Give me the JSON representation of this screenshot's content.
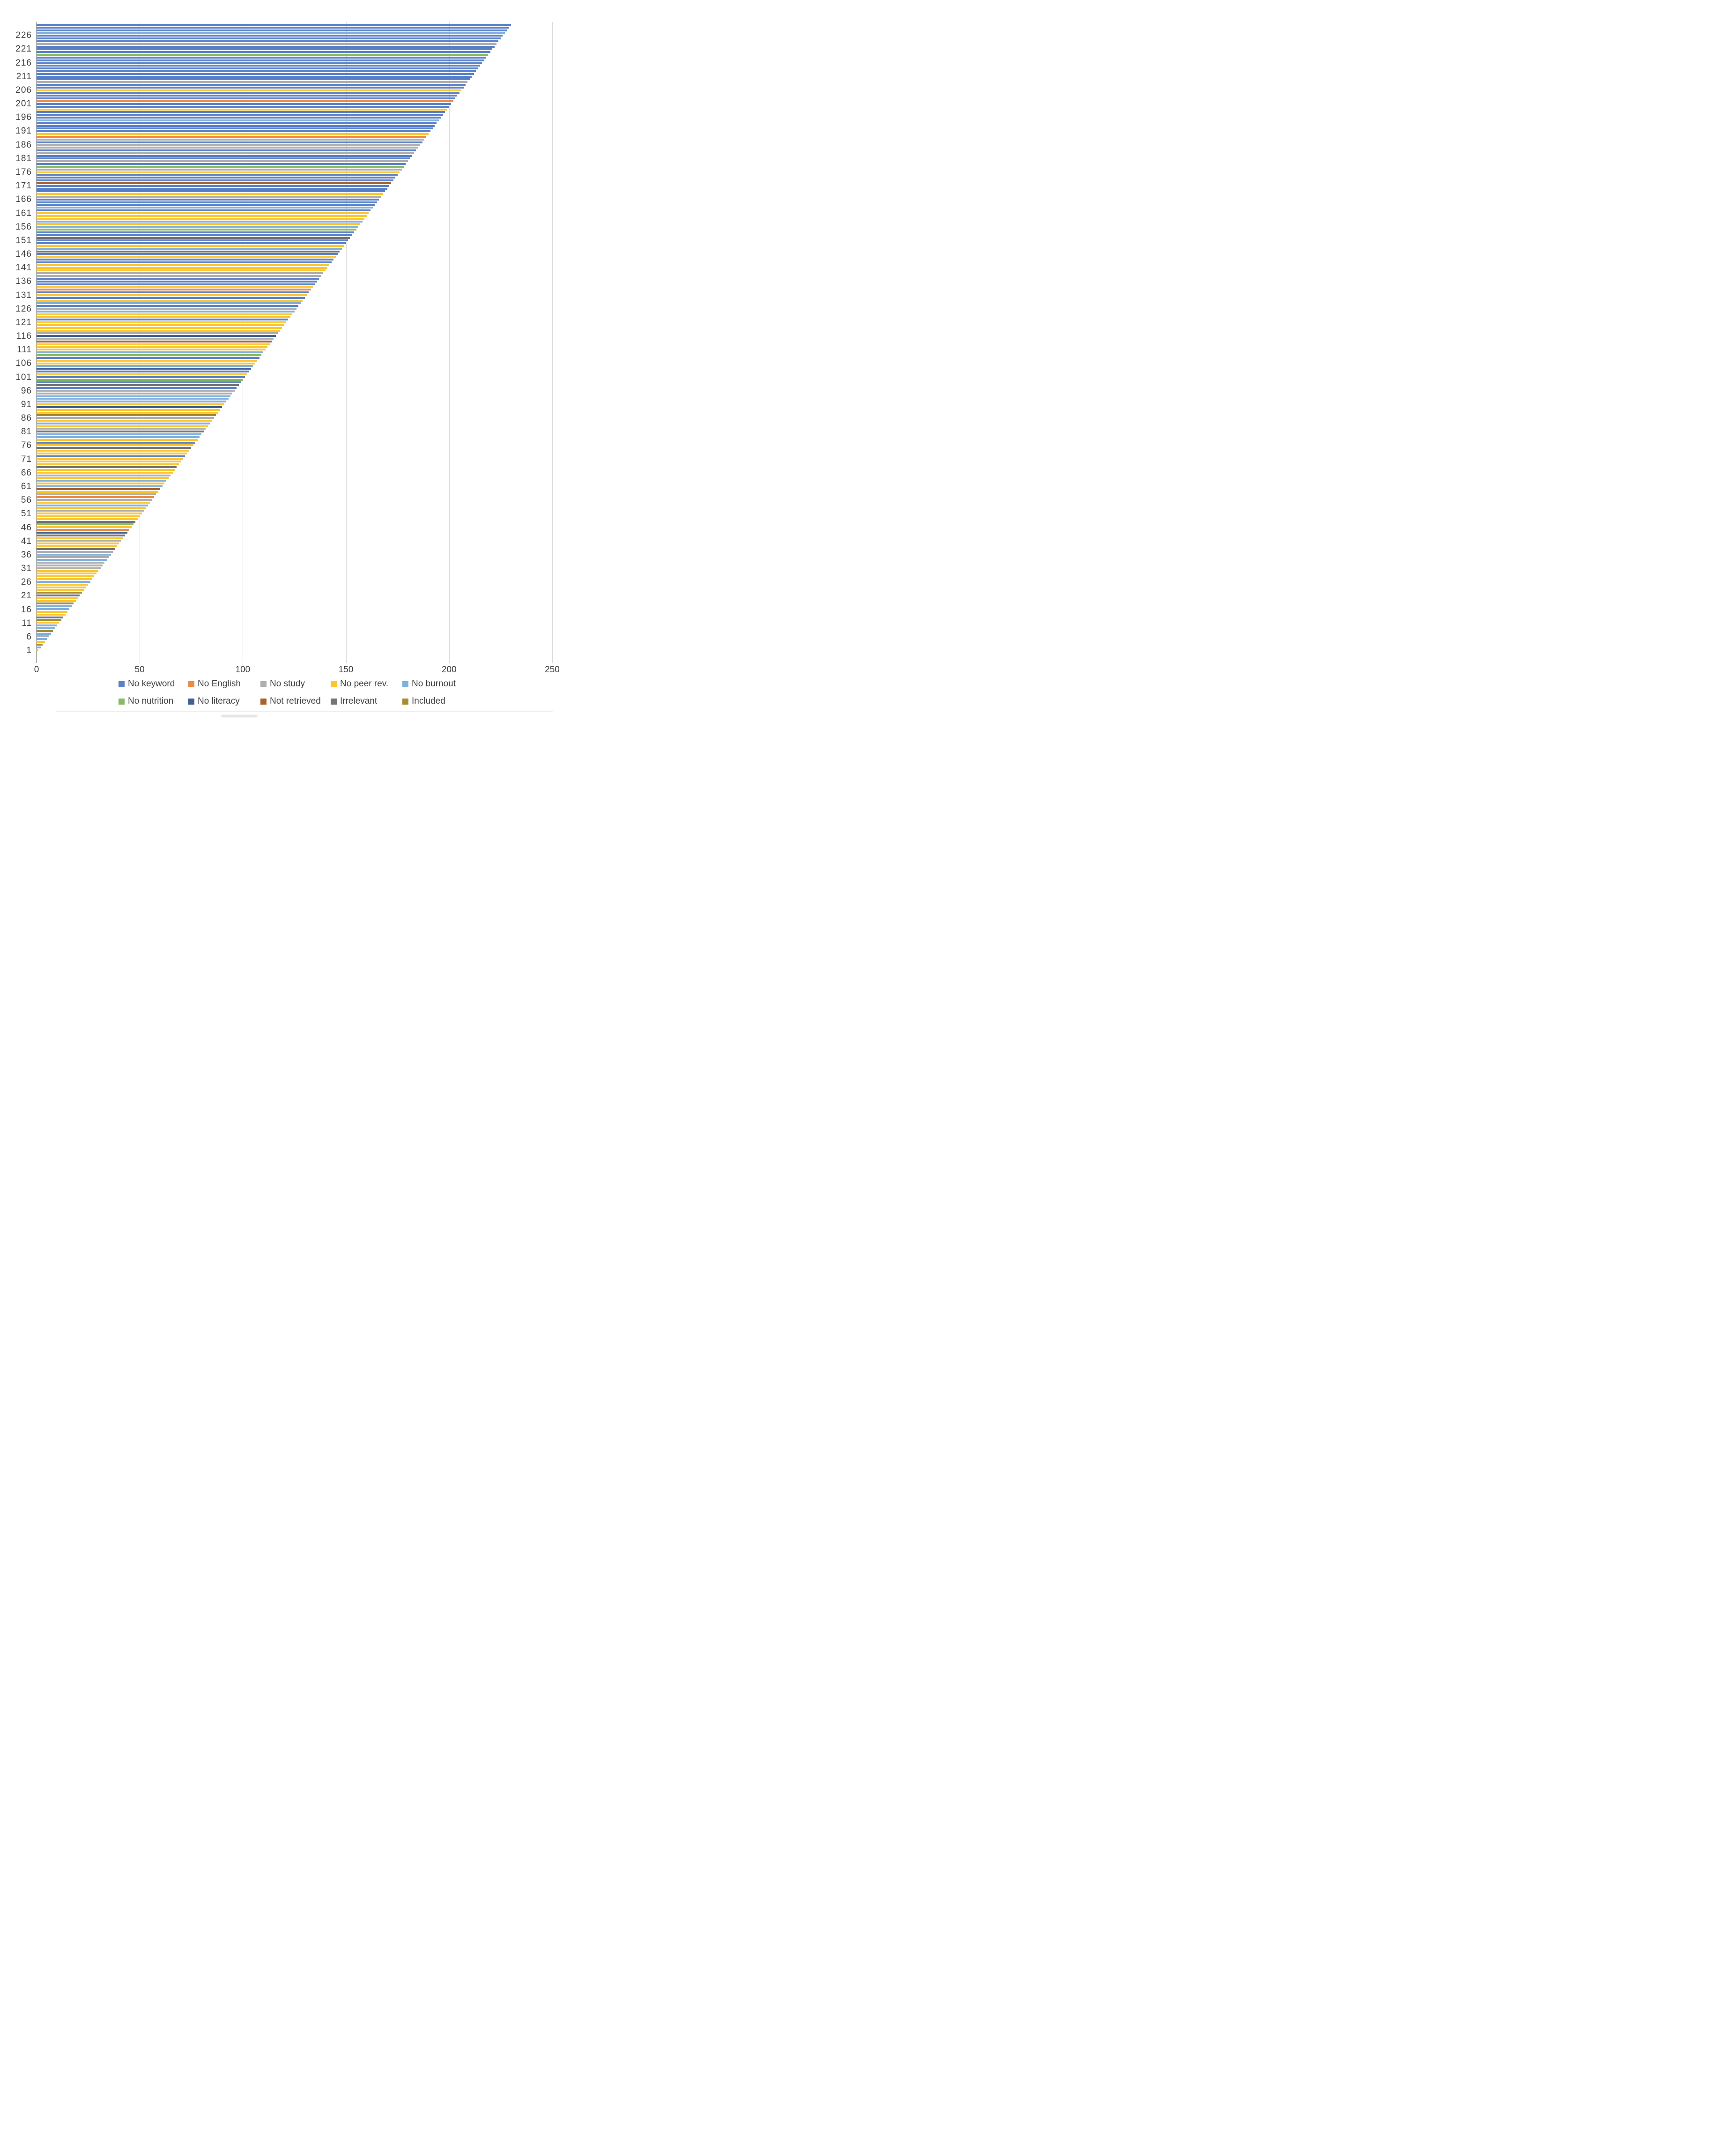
{
  "chart_data": {
    "type": "bar",
    "orientation": "horizontal",
    "title": "",
    "subtitle": "",
    "xlabel": "",
    "ylabel": "",
    "xlim": [
      0,
      250
    ],
    "x_ticks": [
      0,
      50,
      100,
      150,
      200,
      250
    ],
    "y_tick_labels": [
      1,
      6,
      11,
      16,
      21,
      26,
      31,
      36,
      41,
      46,
      51,
      56,
      61,
      66,
      71,
      76,
      81,
      86,
      91,
      96,
      101,
      106,
      111,
      116,
      121,
      126,
      131,
      136,
      141,
      146,
      151,
      156,
      161,
      166,
      171,
      176,
      181,
      186,
      191,
      196,
      201,
      206,
      211,
      216,
      221,
      226
    ],
    "grid": "vertical-gridlines-on",
    "legend_position": "bottom-two-rows",
    "n_records": 230,
    "note": "Each horizontal bar is one screened record; bar length equals its record number (1-230); bar color indicates screening outcome category.",
    "categories": [
      {
        "code": "B",
        "label": "No keyword",
        "color": "#5b82c9"
      },
      {
        "code": "O",
        "label": "No English",
        "color": "#ec8b46"
      },
      {
        "code": "G",
        "label": "No study",
        "color": "#aeaeae"
      },
      {
        "code": "Y",
        "label": "No peer rev.",
        "color": "#fcc630"
      },
      {
        "code": "LB",
        "label": "No burnout",
        "color": "#7fb0de"
      },
      {
        "code": "GR",
        "label": "No nutrition",
        "color": "#88ba64"
      },
      {
        "code": "DB",
        "label": "No literacy",
        "color": "#3f5f95"
      },
      {
        "code": "BR",
        "label": "Not retrieved",
        "color": "#a9622e"
      },
      {
        "code": "DG",
        "label": "Irrelevant",
        "color": "#757575"
      },
      {
        "code": "OL",
        "label": "Included",
        "color": "#a58d35"
      }
    ],
    "record_categories": [
      "Y",
      "LB",
      "OL",
      "Y",
      "LB",
      "G",
      "LB",
      "OL",
      "LB",
      "LB",
      "Y",
      "OL",
      "DG",
      "Y",
      "Y",
      "LB",
      "LB",
      "OL",
      "Y",
      "Y",
      "DG",
      "OL",
      "Y",
      "Y",
      "Y",
      "LB",
      "Y",
      "Y",
      "Y",
      "Y",
      "G",
      "G",
      "G",
      "LB",
      "G",
      "LB",
      "G",
      "DG",
      "Y",
      "Y",
      "G",
      "Y",
      "DG",
      "DB",
      "O",
      "Y",
      "GR",
      "DG",
      "Y",
      "Y",
      "Y",
      "G",
      "Y",
      "LB",
      "Y",
      "G",
      "O",
      "G",
      "Y",
      "BR",
      "LB",
      "Y",
      "LB",
      "Y",
      "G",
      "Y",
      "Y",
      "DG",
      "Y",
      "Y",
      "Y",
      "B",
      "Y",
      "Y",
      "DG",
      "Y",
      "B",
      "Y",
      "LB",
      "LB",
      "DG",
      "G",
      "Y",
      "LB",
      "Y",
      "G",
      "OL",
      "Y",
      "Y",
      "DB",
      "Y",
      "LB",
      "LB",
      "LB",
      "G",
      "G",
      "B",
      "DG",
      "B",
      "GR",
      "B",
      "Y",
      "B",
      "DB",
      "LB",
      "Y",
      "Y",
      "B",
      "GR",
      "LB",
      "Y",
      "Y",
      "Y",
      "BR",
      "G",
      "DB",
      "G",
      "Y",
      "Y",
      "Y",
      "Y",
      "B",
      "Y",
      "Y",
      "LB",
      "G",
      "B",
      "LB",
      "Y",
      "B",
      "Y",
      "B",
      "O",
      "Y",
      "B",
      "B",
      "B",
      "G",
      "G",
      "Y",
      "Y",
      "Y",
      "B",
      "B",
      "Y",
      "B",
      "DG",
      "LB",
      "Y",
      "B",
      "B",
      "DG",
      "B",
      "B",
      "GR",
      "LB",
      "Y",
      "LB",
      "Y",
      "Y",
      "Y",
      "B",
      "LB",
      "B",
      "B",
      "B",
      "G",
      "Y",
      "B",
      "B",
      "B",
      "BR",
      "B",
      "B",
      "B",
      "Y",
      "G",
      "GR",
      "B",
      "G",
      "B",
      "B",
      "G",
      "B",
      "G",
      "G",
      "B",
      "G",
      "O",
      "Y",
      "B",
      "B",
      "B",
      "B",
      "LB",
      "B",
      "B",
      "B",
      "Y",
      "B",
      "B",
      "O",
      "B",
      "B",
      "B",
      "Y",
      "B",
      "B",
      "G",
      "B",
      "B",
      "B",
      "B",
      "B",
      "B",
      "B",
      "B",
      "B",
      "GR",
      "B",
      "B",
      "B",
      "G",
      "B",
      "B",
      "B",
      "LB",
      "B",
      "B",
      "B"
    ]
  },
  "legend": {
    "rows": [
      [
        "B",
        "O",
        "G",
        "Y",
        "LB"
      ],
      [
        "GR",
        "DB",
        "BR",
        "DG",
        "OL"
      ]
    ]
  }
}
